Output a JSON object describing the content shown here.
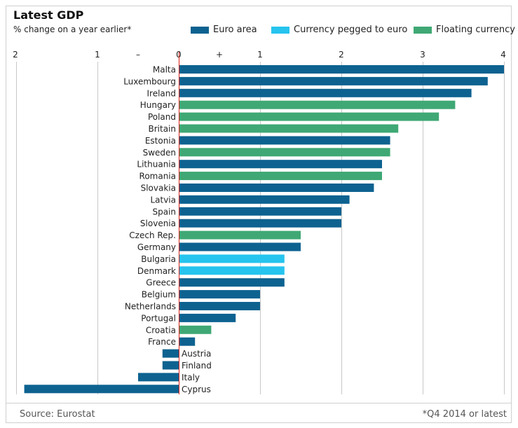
{
  "header": {
    "title": "Latest GDP",
    "subtitle": "% change on a year earlier*"
  },
  "legend": [
    {
      "label": "Euro area",
      "color": "#0d6290"
    },
    {
      "label": "Currency pegged to euro",
      "color": "#26c4ee"
    },
    {
      "label": "Floating currency",
      "color": "#3fa874"
    }
  ],
  "axis": {
    "negative_ticks": [
      "2",
      "1"
    ],
    "positive_ticks": [
      "0",
      "1",
      "2",
      "3",
      "4"
    ],
    "minus_sign": "–",
    "plus_sign": "+"
  },
  "footer": {
    "source": "Source: Eurostat",
    "note": "*Q4 2014 or latest"
  },
  "chart_data": {
    "type": "bar",
    "orientation": "horizontal",
    "title": "Latest GDP",
    "subtitle": "% change on a year earlier*",
    "xlim": [
      -2,
      4
    ],
    "grid": true,
    "legend_position": "top-right",
    "bars": [
      {
        "category": "Malta",
        "value": 4.0,
        "group": "Euro area"
      },
      {
        "category": "Luxembourg",
        "value": 3.8,
        "group": "Euro area"
      },
      {
        "category": "Ireland",
        "value": 3.6,
        "group": "Euro area"
      },
      {
        "category": "Hungary",
        "value": 3.4,
        "group": "Floating currency"
      },
      {
        "category": "Poland",
        "value": 3.2,
        "group": "Floating currency"
      },
      {
        "category": "Britain",
        "value": 2.7,
        "group": "Floating currency"
      },
      {
        "category": "Estonia",
        "value": 2.6,
        "group": "Euro area"
      },
      {
        "category": "Sweden",
        "value": 2.6,
        "group": "Floating currency"
      },
      {
        "category": "Lithuania",
        "value": 2.5,
        "group": "Euro area"
      },
      {
        "category": "Romania",
        "value": 2.5,
        "group": "Floating currency"
      },
      {
        "category": "Slovakia",
        "value": 2.4,
        "group": "Euro area"
      },
      {
        "category": "Latvia",
        "value": 2.1,
        "group": "Euro area"
      },
      {
        "category": "Spain",
        "value": 2.0,
        "group": "Euro area"
      },
      {
        "category": "Slovenia",
        "value": 2.0,
        "group": "Euro area"
      },
      {
        "category": "Czech Rep.",
        "value": 1.5,
        "group": "Floating currency"
      },
      {
        "category": "Germany",
        "value": 1.5,
        "group": "Euro area"
      },
      {
        "category": "Bulgaria",
        "value": 1.3,
        "group": "Currency pegged to euro"
      },
      {
        "category": "Denmark",
        "value": 1.3,
        "group": "Currency pegged to euro"
      },
      {
        "category": "Greece",
        "value": 1.3,
        "group": "Euro area"
      },
      {
        "category": "Belgium",
        "value": 1.0,
        "group": "Euro area"
      },
      {
        "category": "Netherlands",
        "value": 1.0,
        "group": "Euro area"
      },
      {
        "category": "Portugal",
        "value": 0.7,
        "group": "Euro area"
      },
      {
        "category": "Croatia",
        "value": 0.4,
        "group": "Floating currency"
      },
      {
        "category": "France",
        "value": 0.2,
        "group": "Euro area"
      },
      {
        "category": "Austria",
        "value": -0.2,
        "group": "Euro area"
      },
      {
        "category": "Finland",
        "value": -0.2,
        "group": "Euro area"
      },
      {
        "category": "Italy",
        "value": -0.5,
        "group": "Euro area"
      },
      {
        "category": "Cyprus",
        "value": -1.9,
        "group": "Euro area"
      }
    ]
  }
}
